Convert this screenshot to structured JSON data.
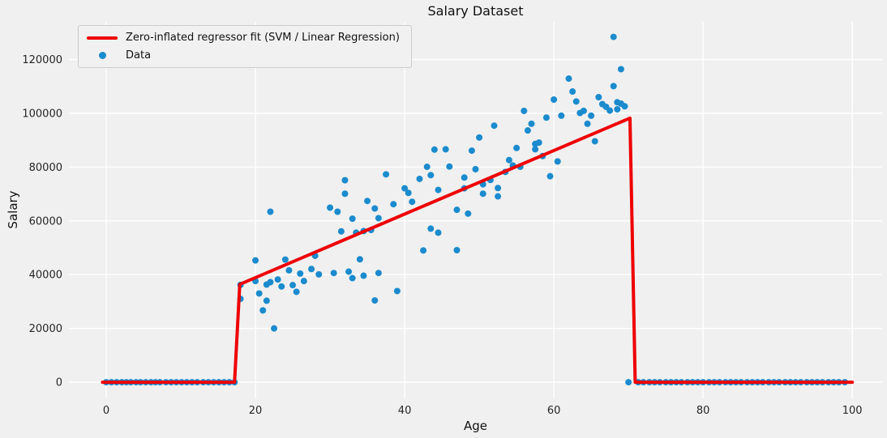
{
  "figure": {
    "title": "Salary Dataset",
    "xlabel": "Age",
    "ylabel": "Salary"
  },
  "colors": {
    "background": "#f0f0f0",
    "grid": "#ffffff",
    "tick_label": "#262626",
    "title": "#111111",
    "scatter": "#1b8bcd",
    "line": "#ee0000",
    "legend_bg": "#f1f1f1",
    "legend_border": "#cccccc"
  },
  "chart_data": {
    "type": "scatter",
    "title": "Salary Dataset",
    "xlabel": "Age",
    "ylabel": "Salary",
    "xlim": [
      -5,
      104
    ],
    "ylim": [
      -6000,
      134000
    ],
    "x_ticks": [
      0,
      20,
      40,
      60,
      80,
      100
    ],
    "y_ticks": [
      0,
      20000,
      40000,
      60000,
      80000,
      100000,
      120000
    ],
    "grid": true,
    "legend_position": "upper left",
    "series": [
      {
        "name": "Zero-inflated regressor fit (SVM / Linear Regression)",
        "type": "line",
        "color": "#ee0000",
        "width": 4,
        "points": [
          [
            -0.5,
            0
          ],
          [
            17.2,
            0
          ],
          [
            17.9,
            36400
          ],
          [
            70.2,
            98200
          ],
          [
            70.9,
            0
          ],
          [
            100,
            0
          ]
        ]
      },
      {
        "name": "Data",
        "type": "scatter",
        "color": "#1b8bcd",
        "marker_size": 4,
        "points": [
          [
            0,
            0
          ],
          [
            0.7,
            0
          ],
          [
            1.4,
            0
          ],
          [
            2.1,
            0
          ],
          [
            2.7,
            0
          ],
          [
            3.3,
            0
          ],
          [
            4,
            0
          ],
          [
            4.6,
            0
          ],
          [
            5.3,
            0
          ],
          [
            6,
            0
          ],
          [
            6.6,
            0
          ],
          [
            7.2,
            0
          ],
          [
            8,
            0
          ],
          [
            8.7,
            0
          ],
          [
            9.4,
            0
          ],
          [
            10.1,
            0
          ],
          [
            10.8,
            0
          ],
          [
            11.5,
            0
          ],
          [
            12.2,
            0
          ],
          [
            13,
            0
          ],
          [
            13.7,
            0
          ],
          [
            14.4,
            0
          ],
          [
            15.1,
            0
          ],
          [
            15.8,
            0
          ],
          [
            16.5,
            0
          ],
          [
            17.2,
            0
          ],
          [
            18,
            31000
          ],
          [
            18,
            36200
          ],
          [
            20,
            45300
          ],
          [
            20,
            37600
          ],
          [
            20.5,
            33000
          ],
          [
            21,
            26700
          ],
          [
            21.5,
            36300
          ],
          [
            21.5,
            30300
          ],
          [
            22,
            63400
          ],
          [
            22,
            37200
          ],
          [
            22.5,
            20000
          ],
          [
            23,
            38200
          ],
          [
            23.5,
            35600
          ],
          [
            24,
            45600
          ],
          [
            24.5,
            41600
          ],
          [
            25,
            36100
          ],
          [
            25.5,
            33600
          ],
          [
            26,
            40400
          ],
          [
            26.5,
            37600
          ],
          [
            27.5,
            42100
          ],
          [
            28,
            47000
          ],
          [
            28.5,
            40100
          ],
          [
            30,
            64900
          ],
          [
            30.5,
            40600
          ],
          [
            31,
            63400
          ],
          [
            31.5,
            56100
          ],
          [
            32,
            75100
          ],
          [
            32,
            70100
          ],
          [
            32.5,
            41100
          ],
          [
            33,
            60800
          ],
          [
            33,
            38700
          ],
          [
            33.5,
            55600
          ],
          [
            34,
            45700
          ],
          [
            34.5,
            56200
          ],
          [
            34.5,
            39600
          ],
          [
            35,
            67400
          ],
          [
            35.5,
            56600
          ],
          [
            36,
            64600
          ],
          [
            36,
            30400
          ],
          [
            36.5,
            61000
          ],
          [
            36.5,
            40600
          ],
          [
            37.5,
            77300
          ],
          [
            38.5,
            66200
          ],
          [
            39,
            33900
          ],
          [
            40,
            72100
          ],
          [
            40.5,
            70400
          ],
          [
            41,
            67100
          ],
          [
            42,
            75600
          ],
          [
            42.5,
            49000
          ],
          [
            43,
            80100
          ],
          [
            43.5,
            77000
          ],
          [
            43.5,
            57100
          ],
          [
            44,
            86500
          ],
          [
            44.5,
            71500
          ],
          [
            44.5,
            55600
          ],
          [
            45.5,
            86600
          ],
          [
            46,
            80200
          ],
          [
            47,
            64100
          ],
          [
            47,
            49100
          ],
          [
            48,
            76100
          ],
          [
            48,
            72100
          ],
          [
            48.5,
            62700
          ],
          [
            49,
            86100
          ],
          [
            49.5,
            79200
          ],
          [
            50,
            91000
          ],
          [
            50.5,
            73600
          ],
          [
            50.5,
            70100
          ],
          [
            51.5,
            75200
          ],
          [
            52,
            95400
          ],
          [
            52.5,
            72200
          ],
          [
            52.5,
            69100
          ],
          [
            53.5,
            78200
          ],
          [
            54,
            82600
          ],
          [
            54.5,
            80600
          ],
          [
            55,
            87100
          ],
          [
            55.5,
            80100
          ],
          [
            56,
            100900
          ],
          [
            56.5,
            93600
          ],
          [
            57,
            96100
          ],
          [
            57.5,
            88600
          ],
          [
            57.5,
            86600
          ],
          [
            58,
            89100
          ],
          [
            58.5,
            84100
          ],
          [
            59,
            98400
          ],
          [
            59.5,
            76600
          ],
          [
            60,
            105100
          ],
          [
            60.5,
            82100
          ],
          [
            61,
            99100
          ],
          [
            62,
            112900
          ],
          [
            62.5,
            108100
          ],
          [
            63,
            104400
          ],
          [
            63.5,
            100100
          ],
          [
            64,
            100900
          ],
          [
            64.5,
            96100
          ],
          [
            65,
            99100
          ],
          [
            65.5,
            89600
          ],
          [
            66,
            106000
          ],
          [
            66.5,
            103400
          ],
          [
            67,
            102400
          ],
          [
            67.5,
            101000
          ],
          [
            68,
            128400
          ],
          [
            68,
            110100
          ],
          [
            68.5,
            104100
          ],
          [
            68.5,
            101500
          ],
          [
            69,
            116400
          ],
          [
            69,
            103600
          ],
          [
            69.5,
            102600
          ],
          [
            70,
            0
          ],
          [
            71.3,
            0
          ],
          [
            72,
            0
          ],
          [
            72.8,
            0
          ],
          [
            73.5,
            0
          ],
          [
            74.2,
            0
          ],
          [
            75,
            0
          ],
          [
            75.7,
            0
          ],
          [
            76.4,
            0
          ],
          [
            77.1,
            0
          ],
          [
            77.9,
            0
          ],
          [
            78.6,
            0
          ],
          [
            79.3,
            0
          ],
          [
            80,
            0
          ],
          [
            80.8,
            0
          ],
          [
            81.5,
            0
          ],
          [
            82.2,
            0
          ],
          [
            83,
            0
          ],
          [
            83.7,
            0
          ],
          [
            84.4,
            0
          ],
          [
            85.1,
            0
          ],
          [
            85.9,
            0
          ],
          [
            86.6,
            0
          ],
          [
            87.3,
            0
          ],
          [
            88,
            0
          ],
          [
            88.8,
            0
          ],
          [
            89.5,
            0
          ],
          [
            90.2,
            0
          ],
          [
            91,
            0
          ],
          [
            91.7,
            0
          ],
          [
            92.4,
            0
          ],
          [
            93.1,
            0
          ],
          [
            93.9,
            0
          ],
          [
            94.6,
            0
          ],
          [
            95.3,
            0
          ],
          [
            96,
            0
          ],
          [
            96.8,
            0
          ],
          [
            97.5,
            0
          ],
          [
            98.2,
            0
          ],
          [
            99,
            0
          ]
        ]
      }
    ]
  }
}
